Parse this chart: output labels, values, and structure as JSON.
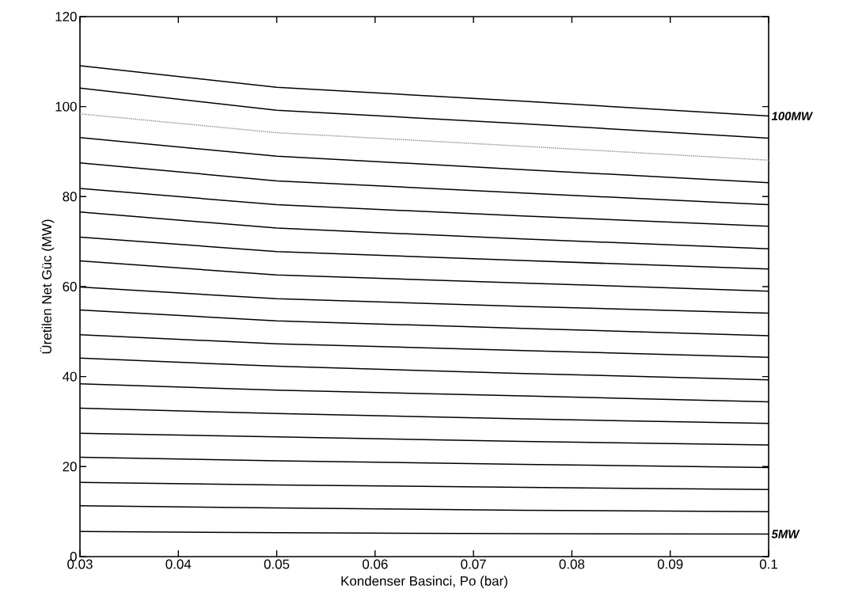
{
  "chart_data": {
    "type": "line",
    "xlabel": "Kondenser Basinci, Po (bar)",
    "ylabel": "Üretilen Net Güc (MW)",
    "x": [
      0.03,
      0.05,
      0.075,
      0.1
    ],
    "xlim": [
      0.03,
      0.1
    ],
    "ylim": [
      0,
      120
    ],
    "xticks": [
      0.03,
      0.04,
      0.05,
      0.06,
      0.07,
      0.08,
      0.09,
      0.1
    ],
    "yticks": [
      0,
      20,
      40,
      60,
      80,
      100,
      120
    ],
    "grid": false,
    "marker": "none",
    "line_style": "solid",
    "annotations": [
      {
        "text": "100MW",
        "x": 0.1,
        "y": 97.9
      },
      {
        "text": "5MW",
        "x": 0.1,
        "y": 5.0
      }
    ],
    "series": [
      {
        "color": "#000000",
        "values": [
          109.1,
          104.3,
          101.2,
          97.9
        ]
      },
      {
        "color": "#000000",
        "values": [
          104.1,
          99.2,
          96.2,
          93.0
        ]
      },
      {
        "color": "#9a9a9a",
        "line_style": "dotted",
        "values": [
          98.4,
          94.2,
          91.2,
          88.1
        ]
      },
      {
        "color": "#000000",
        "values": [
          93.1,
          89.0,
          86.0,
          83.1
        ]
      },
      {
        "color": "#000000",
        "values": [
          87.5,
          83.5,
          80.8,
          78.2
        ]
      },
      {
        "color": "#000000",
        "values": [
          81.8,
          78.2,
          75.7,
          73.4
        ]
      },
      {
        "color": "#000000",
        "values": [
          76.6,
          73.0,
          70.6,
          68.4
        ]
      },
      {
        "color": "#000000",
        "values": [
          71.0,
          67.8,
          65.8,
          63.9
        ]
      },
      {
        "color": "#000000",
        "values": [
          65.7,
          62.6,
          60.8,
          59.0
        ]
      },
      {
        "color": "#000000",
        "values": [
          59.9,
          57.3,
          55.6,
          54.1
        ]
      },
      {
        "color": "#000000",
        "values": [
          54.8,
          52.4,
          50.7,
          49.1
        ]
      },
      {
        "color": "#000000",
        "values": [
          49.3,
          47.3,
          45.8,
          44.3
        ]
      },
      {
        "color": "#000000",
        "values": [
          44.1,
          42.3,
          40.7,
          39.3
        ]
      },
      {
        "color": "#000000",
        "values": [
          38.4,
          37.0,
          35.7,
          34.4
        ]
      },
      {
        "color": "#000000",
        "values": [
          33.0,
          31.8,
          30.6,
          29.6
        ]
      },
      {
        "color": "#000000",
        "values": [
          27.4,
          26.6,
          25.6,
          24.8
        ]
      },
      {
        "color": "#000000",
        "values": [
          22.1,
          21.3,
          20.5,
          19.8
        ]
      },
      {
        "color": "#000000",
        "values": [
          16.5,
          15.9,
          15.4,
          14.9
        ]
      },
      {
        "color": "#000000",
        "values": [
          11.3,
          10.8,
          10.3,
          10.0
        ]
      },
      {
        "color": "#000000",
        "values": [
          5.6,
          5.3,
          5.1,
          5.0
        ]
      }
    ]
  }
}
